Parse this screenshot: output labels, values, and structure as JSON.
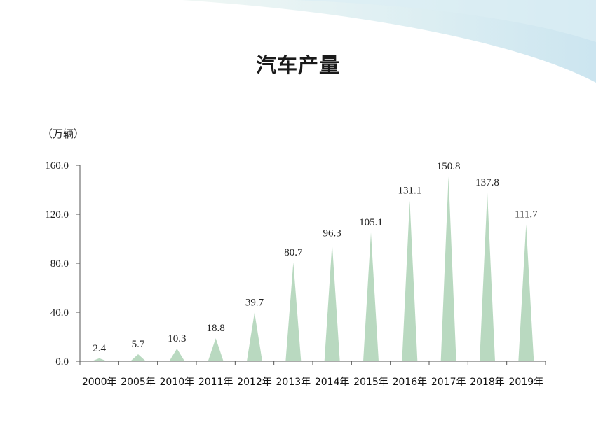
{
  "chart_data": {
    "type": "area",
    "title": "汽车产量",
    "unit_label": "（万辆）",
    "xlabel": "",
    "ylabel": "",
    "categories": [
      "2000年",
      "2005年",
      "2010年",
      "2011年",
      "2012年",
      "2013年",
      "2014年",
      "2015年",
      "2016年",
      "2017年",
      "2018年",
      "2019年"
    ],
    "values": [
      2.4,
      5.7,
      10.3,
      18.8,
      39.7,
      80.7,
      96.3,
      105.1,
      131.1,
      150.8,
      137.8,
      111.7
    ],
    "value_labels": [
      "2.4",
      "5.7",
      "10.3",
      "18.8",
      "39.7",
      "80.7",
      "96.3",
      "105.1",
      "131.1",
      "150.8",
      "137.8",
      "111.7"
    ],
    "ylim": [
      0,
      160
    ],
    "yticks": [
      "0.0",
      "40.0",
      "80.0",
      "120.0",
      "160.0"
    ],
    "ytick_values": [
      0,
      40,
      80,
      120,
      160
    ],
    "grid": false,
    "colors": {
      "fill": "#b9d9c0",
      "axis": "#555555"
    }
  }
}
